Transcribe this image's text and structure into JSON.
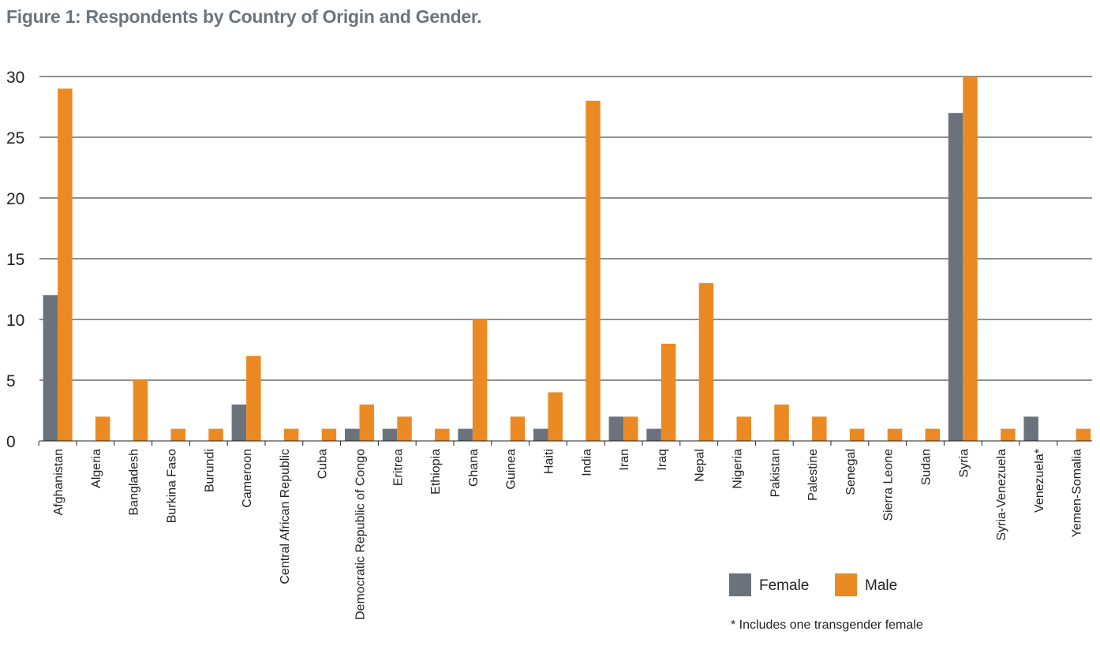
{
  "chart_data": {
    "type": "bar",
    "title": "Figure 1: Respondents by Country of Origin and Gender.",
    "xlabel": "",
    "ylabel": "",
    "ylim": [
      0,
      30
    ],
    "yticks": [
      0,
      5,
      10,
      15,
      20,
      25,
      30
    ],
    "grid": true,
    "legend_position": "bottom-right",
    "categories": [
      "Afghanistan",
      "Algeria",
      "Bangladesh",
      "Burkina Faso",
      "Burundi",
      "Cameroon",
      "Central African Republic",
      "Cuba",
      "Democratic Republic of Congo",
      "Eritrea",
      "Ethiopia",
      "Ghana",
      "Guinea",
      "Haiti",
      "India",
      "Iran",
      "Iraq",
      "Nepal",
      "Nigeria",
      "Pakistan",
      "Palestine",
      "Senegal",
      "Sierra Leone",
      "Sudan",
      "Syria",
      "Syria-Venezuela",
      "Venezuela*",
      "Yemen-Somalia"
    ],
    "series": [
      {
        "name": "Female",
        "color": "#6b727b",
        "values": [
          12,
          0,
          0,
          0,
          0,
          3,
          0,
          0,
          1,
          1,
          0,
          1,
          0,
          1,
          0,
          2,
          1,
          0,
          0,
          0,
          0,
          0,
          0,
          0,
          27,
          0,
          2,
          0
        ]
      },
      {
        "name": "Male",
        "color": "#eb8a23",
        "values": [
          29,
          2,
          5,
          1,
          1,
          7,
          1,
          1,
          3,
          2,
          1,
          10,
          2,
          4,
          28,
          2,
          8,
          13,
          2,
          3,
          2,
          1,
          1,
          1,
          30,
          1,
          0,
          1
        ]
      }
    ],
    "footnote": "* Includes one transgender female"
  }
}
